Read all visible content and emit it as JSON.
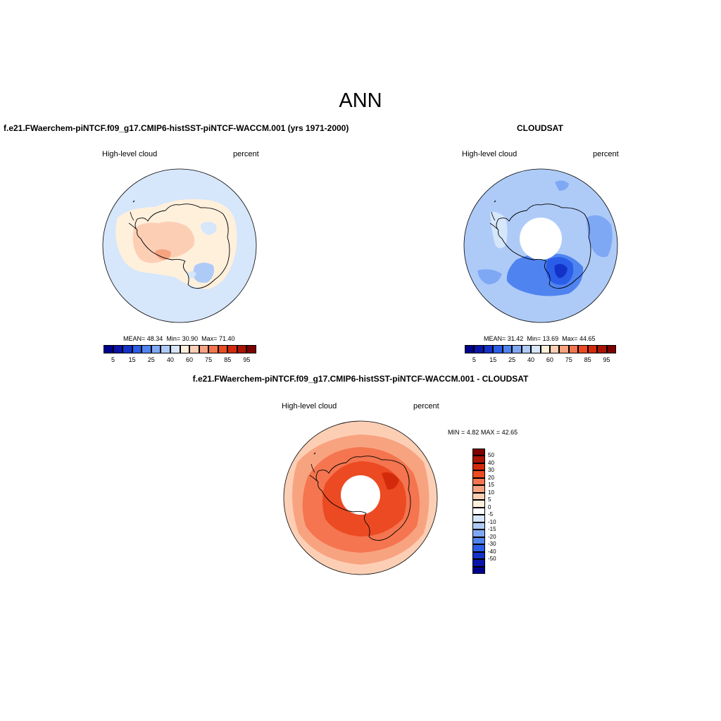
{
  "figure": {
    "title": "ANN"
  },
  "panels": [
    {
      "id": "model",
      "title": "f.e21.FWaerchem-piNTCF.f09_g17.CMIP6-histSST-piNTCF-WACCM.001 (yrs 1971-2000)",
      "variable": "High-level cloud",
      "units": "percent",
      "stats": {
        "mean": "48.34",
        "min": "30.90",
        "max": "71.40"
      },
      "stats_text": {
        "mean_label": "MEAN=",
        "min_label": "Min=",
        "max_label": "Max="
      }
    },
    {
      "id": "obs",
      "title": "CLOUDSAT",
      "variable": "High-level cloud",
      "units": "percent",
      "stats": {
        "mean": "31.42",
        "min": "13.69",
        "max": "44.65"
      },
      "stats_text": {
        "mean_label": "MEAN=",
        "min_label": "Min=",
        "max_label": "Max="
      }
    },
    {
      "id": "diff",
      "title": "f.e21.FWaerchem-piNTCF.f09_g17.CMIP6-histSST-piNTCF-WACCM.001 - CLOUDSAT",
      "variable": "High-level cloud",
      "units": "percent",
      "range": {
        "min_label": "MIN =",
        "min": "4.82",
        "max_label": "MAX =",
        "max": "42.65"
      }
    }
  ],
  "colorbars": {
    "abs": {
      "colors": [
        "#00008c",
        "#0a14a8",
        "#1432c8",
        "#2a5ee8",
        "#4f84f0",
        "#7fa8f4",
        "#aecbf8",
        "#d6e6fb",
        "#fff0dc",
        "#fccfb5",
        "#f8a380",
        "#f4754f",
        "#ec4a22",
        "#d42a0c",
        "#ab1404",
        "#7c0000"
      ],
      "tick_labels": [
        "5",
        "15",
        "25",
        "40",
        "60",
        "75",
        "85",
        "95"
      ]
    },
    "diff": {
      "colors": [
        "#7c0000",
        "#ab1404",
        "#d42a0c",
        "#ec4a22",
        "#f4754f",
        "#f8a380",
        "#fccfb5",
        "#fff0dc",
        "#ffffff",
        "#d6e6fb",
        "#aecbf8",
        "#7fa8f4",
        "#4f84f0",
        "#2a5ee8",
        "#1432c8",
        "#0a14a8",
        "#00008c"
      ],
      "tick_labels": [
        "50",
        "40",
        "30",
        "20",
        "15",
        "10",
        "5",
        "0",
        "-5",
        "-10",
        "-15",
        "-20",
        "-30",
        "-40",
        "-50"
      ]
    }
  }
}
